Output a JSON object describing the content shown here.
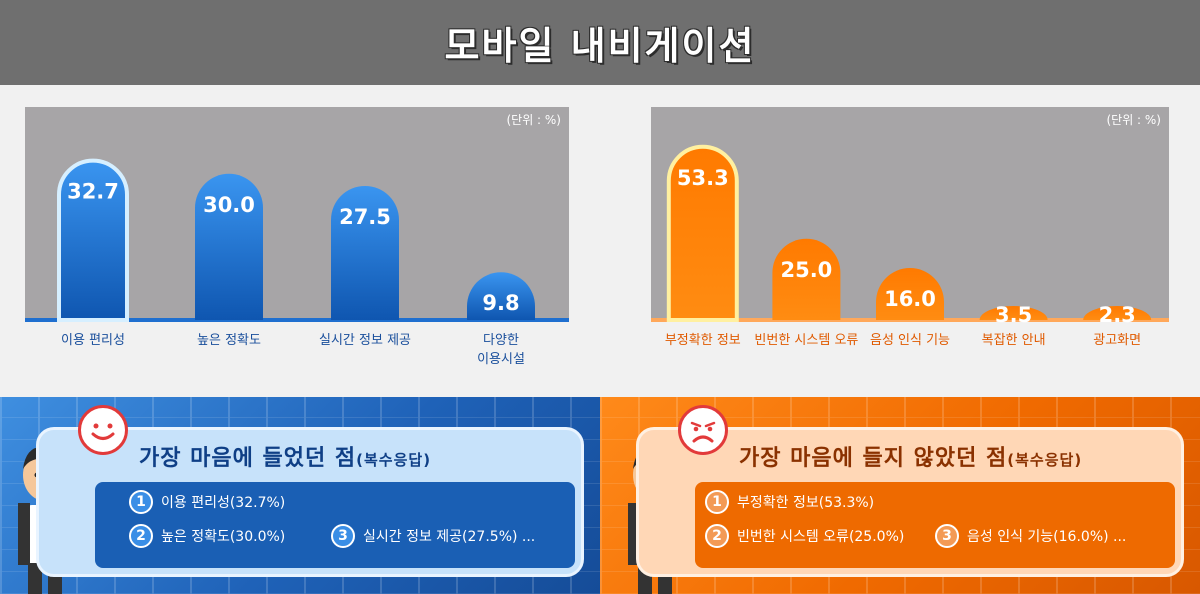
{
  "page_title": "모바일 내비게이션",
  "colors": {
    "header_bg": "#6f6f6f",
    "blue_bar": "#1f7ad6",
    "orange_bar": "#ff7a00",
    "chart_bg": "#a7a5a7"
  },
  "chart_data": [
    {
      "type": "bar",
      "title": "",
      "unit_label": "(단위 : %)",
      "categories": [
        "이용 편리성",
        "높은 정확도",
        "실시간 정보 제공",
        "다양한\n이용시설"
      ],
      "values": [
        32.7,
        30.0,
        27.5,
        9.8
      ],
      "value_labels": [
        "32.7",
        "30.0",
        "27.5",
        "9.8"
      ],
      "highlight_index": 0,
      "ylim": [
        0,
        40
      ],
      "color": "#1f7ad6"
    },
    {
      "type": "bar",
      "title": "",
      "unit_label": "(단위 : %)",
      "categories": [
        "부정확한 정보",
        "빈번한 시스템 오류",
        "음성 인식 기능",
        "복잡한 안내",
        "광고화면"
      ],
      "values": [
        53.3,
        25.0,
        16.0,
        3.5,
        2.3
      ],
      "value_labels": [
        "53.3",
        "25.0",
        "16.0",
        "3.5",
        "2.3"
      ],
      "highlight_index": 0,
      "ylim": [
        0,
        60
      ],
      "color": "#ff7a00"
    }
  ],
  "liked": {
    "title": "가장 마음에 들었던 점",
    "subtitle": "(복수응답)",
    "items": [
      {
        "num": "1",
        "text": "이용 편리성(32.7%)"
      },
      {
        "num": "2",
        "text": "높은 정확도(30.0%)"
      },
      {
        "num": "3",
        "text": "실시간 정보 제공(27.5%) ..."
      }
    ]
  },
  "disliked": {
    "title": "가장 마음에 들지 않았던 점",
    "subtitle": "(복수응답)",
    "items": [
      {
        "num": "1",
        "text": "부정확한 정보(53.3%)"
      },
      {
        "num": "2",
        "text": "빈번한 시스템 오류(25.0%)"
      },
      {
        "num": "3",
        "text": "음성 인식 기능(16.0%) ..."
      }
    ]
  }
}
